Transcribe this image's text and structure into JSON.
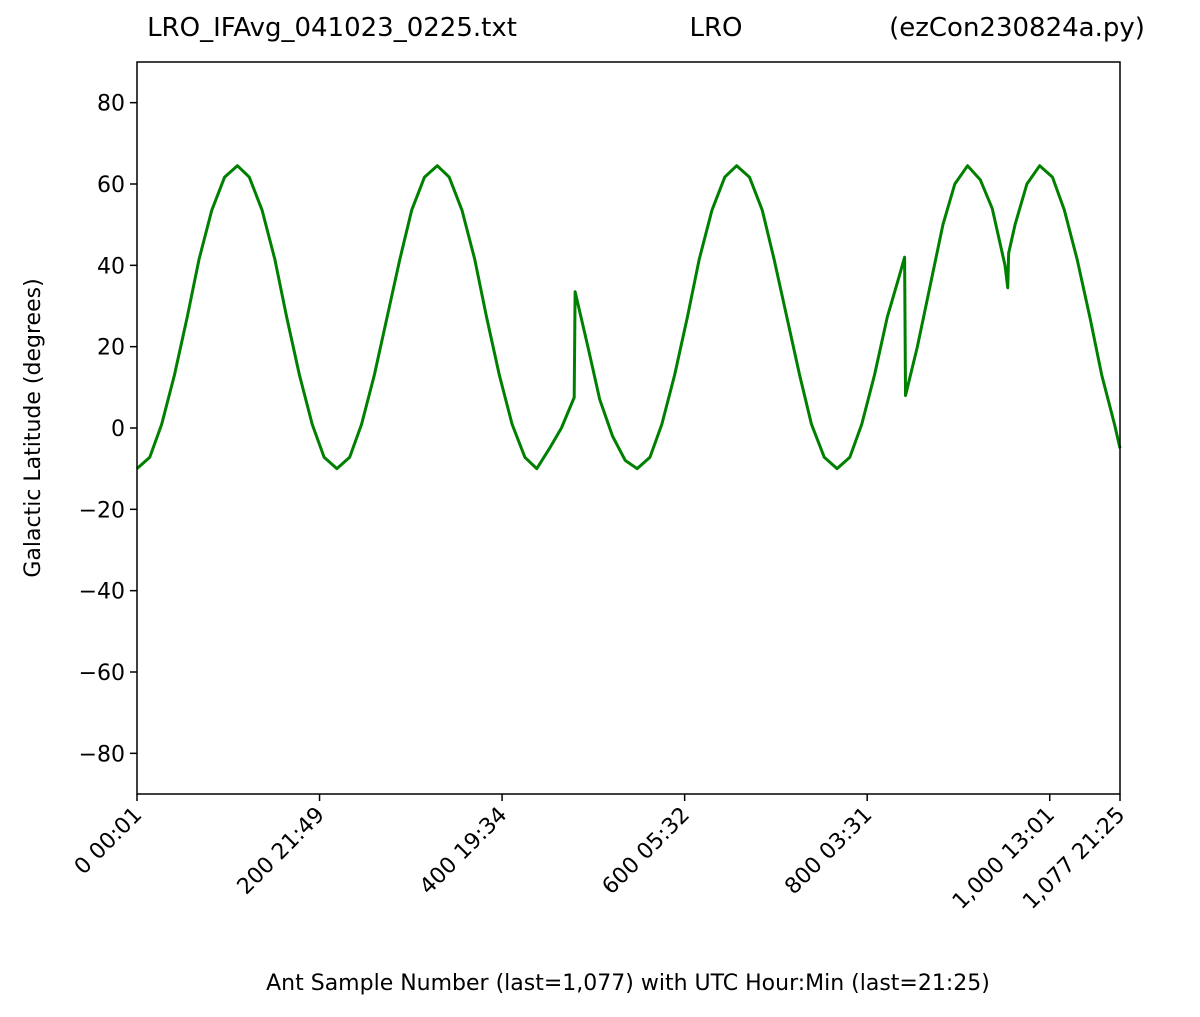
{
  "chart_data": {
    "type": "line",
    "title_left": "LRO_IFAvg_041023_0225.txt",
    "title": "LRO",
    "title_right": "(ezCon230824a.py)",
    "xlabel": "Ant Sample Number (last=1,077) with UTC Hour:Min (last=21:25)",
    "ylabel": "Galactic Latitude (degrees)",
    "xlim": [
      0,
      1077
    ],
    "ylim": [
      -90,
      90
    ],
    "xticks": [
      {
        "value": 0,
        "label": "0  00:01"
      },
      {
        "value": 200,
        "label": "200  21:49"
      },
      {
        "value": 400,
        "label": "400  19:34"
      },
      {
        "value": 600,
        "label": "600  05:32"
      },
      {
        "value": 800,
        "label": "800  03:31"
      },
      {
        "value": 1000,
        "label": "1,000  13:01"
      },
      {
        "value": 1077,
        "label": "1,077  21:25"
      }
    ],
    "yticks": [
      {
        "value": -80,
        "label": "−80"
      },
      {
        "value": -60,
        "label": "−60"
      },
      {
        "value": -40,
        "label": "−40"
      },
      {
        "value": -20,
        "label": "−20"
      },
      0,
      20,
      40,
      60,
      80
    ],
    "color": "#008000",
    "x": [
      0,
      14,
      27,
      41,
      55,
      68,
      82,
      96,
      110,
      123,
      137,
      151,
      164,
      178,
      192,
      205,
      219,
      233,
      246,
      260,
      274,
      288,
      301,
      315,
      329,
      342,
      356,
      370,
      383,
      397,
      411,
      425,
      438,
      452,
      465,
      479,
      480,
      494,
      507,
      521,
      535,
      548,
      562,
      575,
      589,
      603,
      616,
      630,
      644,
      657,
      671,
      685,
      698,
      712,
      726,
      739,
      753,
      767,
      781,
      794,
      808,
      822,
      836,
      841,
      842,
      855,
      869,
      883,
      896,
      910,
      924,
      937,
      951,
      954,
      955,
      962,
      975,
      989,
      1003,
      1016,
      1030,
      1044,
      1057,
      1071,
      1077
    ],
    "values": [
      -10,
      -7.2,
      0.9,
      13,
      27.25,
      41.5,
      53.6,
      61.7,
      64.5,
      61.7,
      53.6,
      41.5,
      27.25,
      13,
      0.9,
      -7.2,
      -10,
      -7.2,
      0.9,
      13,
      27.25,
      41.5,
      53.6,
      61.7,
      64.5,
      61.7,
      53.6,
      41.5,
      27.25,
      13,
      0.9,
      -7.2,
      -10,
      -5,
      0,
      7.5,
      33.5,
      20,
      7,
      -2,
      -8,
      -10,
      -7.2,
      0.9,
      13,
      27.25,
      41.5,
      53.6,
      61.7,
      64.5,
      61.7,
      53.6,
      41.5,
      27.25,
      13,
      0.9,
      -7.2,
      -10,
      -7.2,
      0.9,
      13,
      27.25,
      38,
      42,
      8,
      20,
      35,
      50,
      60,
      64.5,
      61,
      54,
      40,
      34.5,
      43,
      50,
      60,
      64.5,
      61.7,
      53.6,
      41.5,
      27.25,
      13,
      0.9,
      -5
    ]
  }
}
